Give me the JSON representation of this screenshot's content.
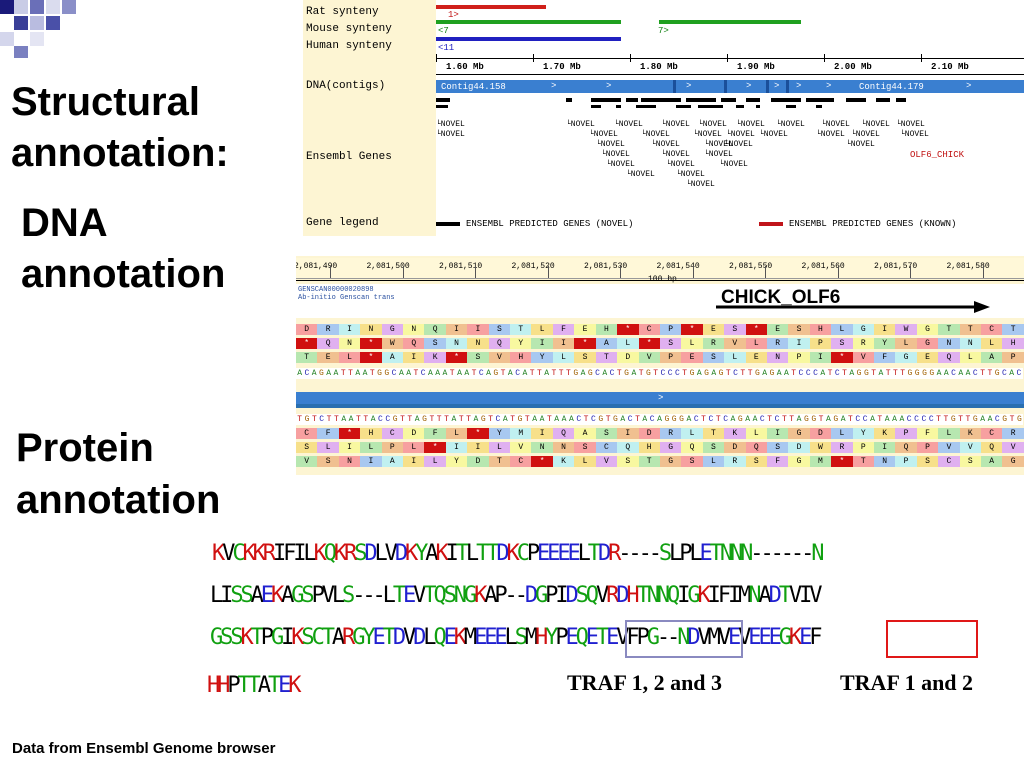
{
  "titles": {
    "structural": "Structural",
    "annotation_colon": "annotation:",
    "dna": "DNA",
    "dna_annotation": "annotation",
    "protein": "Protein",
    "protein_annotation": "annotation"
  },
  "logo": {
    "name": "checkered-logo"
  },
  "ensembl_top": {
    "labels": {
      "rat": "Rat synteny",
      "mouse": "Mouse synteny",
      "human": "Human synteny",
      "dna": "DNA(contigs)",
      "genes": "Ensembl Genes",
      "legend": "Gene legend"
    },
    "markers": {
      "rat": "1>",
      "mouse_left": "<7",
      "mouse_right": "7>",
      "human": "<11"
    },
    "scale_ticks": [
      "1.60 Mb",
      "1.70 Mb",
      "1.80 Mb",
      "1.90 Mb",
      "2.00 Mb",
      "2.10 Mb"
    ],
    "contigs": [
      "Contig44.158",
      "Contig44.179"
    ],
    "novel": "NOVEL",
    "olf6": "OLF6_CHICK",
    "legend_novel": "ENSEMBL PREDICTED GENES (NOVEL)",
    "legend_known": "ENSEMBL PREDICTED GENES (KNOWN)",
    "colors": {
      "rat": "#d0201a",
      "mouse": "#1fa01f",
      "human": "#2020c0",
      "contig": "#3a7fd0",
      "known": "#c0141a"
    }
  },
  "ensembl_mid": {
    "coords": [
      "2,081,490",
      "2,081,500",
      "2,081,510",
      "2,081,520",
      "2,081,530",
      "2,081,540",
      "2,081,550",
      "2,081,560",
      "2,081,570",
      "2,081,580"
    ],
    "scale_label": "100 bp",
    "genscan_id": "GENSCAN00000020898",
    "genscan_desc": "Ab-initio Genscan trans",
    "gene_label": "CHICK_OLF6",
    "frames_top": [
      "DRINGNQIISTLFEHXCPXESXESHLGIWGTTCT",
      "XQNXWQSNNQYIIXALXSLRVLRIPSRYLGNNLH",
      "TELXAIKXSVHYLSTDVPESLENPIXVFGEQLAP"
    ],
    "dna_fwd": "ACAGAATTAATGGCAATCAAATAATCAGTACATTATTTGAGCACTGATGTCCCTGAGAGTCTTGAGAATCCCATCTAGGTATTTGGGGAACAACTTGCAC",
    "dna_rev": "TGTCTTAATTACCGTTAGTTTATTAGTCATGTAATAAACTCGTGACTACAGGGACTCTCAGAACTCTTAGGTAGATCCATAAACCCCTTGTTGAACGTG",
    "frames_bottom": [
      "CFXHCDFLXYMIQASIDRLTKLIGDLYKPFLKCR",
      "SLILPLXIILVNNSCQHGQSDQSDWRPIQPVVQV",
      "VSNIAILYDTCXKLVSTGSLRSFGMXTNPSCSAG"
    ]
  },
  "protein": {
    "lines": [
      "KVCKKRIFILKQKRSDLVDKYAKITLTTDKCPEEEELTDR----SLPLETNNN------N",
      "LISSAEKAGSPVLS---LTEVTQSNGKAP--DGPIDSQVRDHTNNQIGKIFIMNADTVIV",
      "GSSKTPGIKSCTARGYETDVDLQEKMEEELSMHYPEQETEVFPG--NDVMVEVEEEGKEF",
      "HHPTTATEK"
    ],
    "traf123_label": "TRAF 1, 2 and 3",
    "traf12_label": "TRAF 1 and 2",
    "box_colors": {
      "traf123": "#8a8ac0",
      "traf12": "#e01818"
    }
  },
  "footer": {
    "source": "Data from Ensembl Genome browser"
  }
}
